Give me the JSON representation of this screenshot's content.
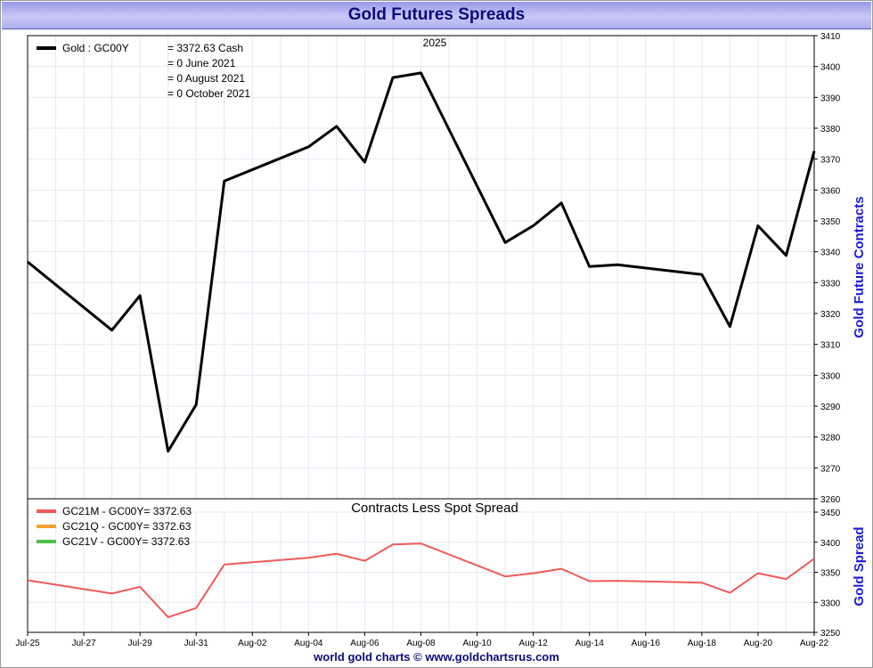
{
  "header": {
    "title": "Gold Futures Spreads"
  },
  "footer": {
    "credit": "world gold charts © www.goldchartsrus.com"
  },
  "chart_data": [
    {
      "type": "line",
      "title": "2025",
      "ylabel": "Gold Future Contracts",
      "ylim": [
        3260,
        3410
      ],
      "yticks": [
        3260,
        3270,
        3280,
        3290,
        3300,
        3310,
        3320,
        3330,
        3340,
        3350,
        3360,
        3370,
        3380,
        3390,
        3400,
        3410
      ],
      "x_labels": [
        "Jul-25",
        "Jul-27",
        "Jul-29",
        "Jul-31",
        "Aug-02",
        "Aug-04",
        "Aug-06",
        "Aug-08",
        "Aug-10",
        "Aug-12",
        "Aug-14",
        "Aug-16",
        "Aug-18",
        "Aug-20",
        "Aug-22"
      ],
      "xlim": [
        "Jul-25",
        "Aug-22"
      ],
      "grid": true,
      "legend": {
        "placement": "top-left",
        "series_label": "Gold : GC00Y",
        "rows": [
          "= 3372.63 Cash",
          "= 0 June 2021",
          "= 0 August 2021",
          "= 0 October 2021"
        ]
      },
      "series": [
        {
          "name": "Gold : GC00Y",
          "color": "#000000",
          "x": [
            "Jul-25",
            "Jul-28",
            "Jul-29",
            "Jul-30",
            "Jul-31",
            "Aug-01",
            "Aug-04",
            "Aug-05",
            "Aug-06",
            "Aug-07",
            "Aug-08",
            "Aug-11",
            "Aug-12",
            "Aug-13",
            "Aug-14",
            "Aug-15",
            "Aug-18",
            "Aug-19",
            "Aug-20",
            "Aug-21",
            "Aug-22"
          ],
          "values": [
            3336.7,
            3314.6,
            3325.8,
            3275.4,
            3290.5,
            3362.9,
            3374.0,
            3380.6,
            3369.0,
            3396.4,
            3397.9,
            3343.0,
            3348.4,
            3355.8,
            3335.2,
            3335.8,
            3332.6,
            3315.8,
            3348.4,
            3338.8,
            3372.6
          ]
        }
      ]
    },
    {
      "type": "line",
      "title": "Contracts Less Spot Spread",
      "ylabel": "Gold Spread",
      "ylim": [
        3250,
        3450
      ],
      "yticks": [
        3250,
        3300,
        3350,
        3400,
        3450
      ],
      "grid": true,
      "legend": {
        "placement": "top-left"
      },
      "series": [
        {
          "name": "GC21M - GC00Y= 3372.63",
          "color": "#f05a5a",
          "x": [
            "Jul-25",
            "Jul-28",
            "Jul-29",
            "Jul-30",
            "Jul-31",
            "Aug-01",
            "Aug-04",
            "Aug-05",
            "Aug-06",
            "Aug-07",
            "Aug-08",
            "Aug-11",
            "Aug-12",
            "Aug-13",
            "Aug-14",
            "Aug-15",
            "Aug-18",
            "Aug-19",
            "Aug-20",
            "Aug-21",
            "Aug-22"
          ],
          "values": [
            3336.7,
            3314.6,
            3325.8,
            3275.4,
            3290.5,
            3362.9,
            3374.0,
            3380.6,
            3369.0,
            3396.4,
            3397.9,
            3343.0,
            3348.4,
            3355.8,
            3335.2,
            3335.8,
            3332.6,
            3315.8,
            3348.4,
            3338.8,
            3372.6
          ]
        },
        {
          "name": "GC21Q - GC00Y= 3372.63",
          "color": "#f5a030",
          "x": [],
          "values": []
        },
        {
          "name": "GC21V - GC00Y= 3372.63",
          "color": "#4cc04c",
          "x": [],
          "values": []
        }
      ]
    }
  ]
}
